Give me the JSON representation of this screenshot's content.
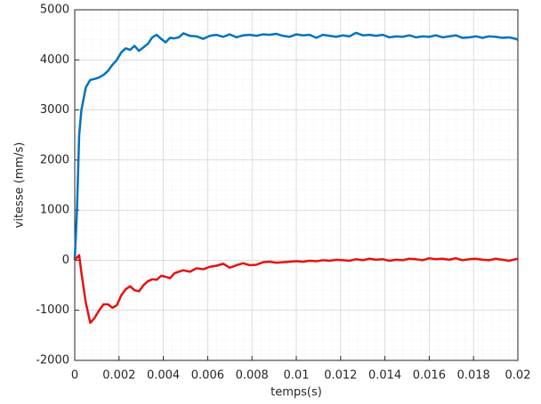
{
  "chart_data": {
    "type": "line",
    "x_label": "temps(s)",
    "y_label": "vitesse (mm/s)",
    "x": [
      0,
      0.0001,
      0.0002,
      0.0003,
      0.0005,
      0.0007,
      0.0009,
      0.0011,
      0.0013,
      0.0015,
      0.0017,
      0.0019,
      0.0021,
      0.0023,
      0.0025,
      0.0027,
      0.0029,
      0.0031,
      0.0033,
      0.0035,
      0.0037,
      0.0039,
      0.0041,
      0.0043,
      0.0045,
      0.0047,
      0.0049,
      0.0052,
      0.0055,
      0.0058,
      0.0061,
      0.0064,
      0.0067,
      0.007,
      0.0073,
      0.0076,
      0.0079,
      0.0082,
      0.0085,
      0.0088,
      0.0091,
      0.0094,
      0.0097,
      0.01,
      0.0103,
      0.0106,
      0.0109,
      0.0112,
      0.0115,
      0.0118,
      0.0121,
      0.0124,
      0.0127,
      0.013,
      0.0133,
      0.0136,
      0.0139,
      0.0142,
      0.0145,
      0.0148,
      0.0151,
      0.0154,
      0.0157,
      0.016,
      0.0163,
      0.0166,
      0.0169,
      0.0172,
      0.0175,
      0.0178,
      0.0181,
      0.0184,
      0.0187,
      0.019,
      0.0193,
      0.0196,
      0.0199,
      0.02
    ],
    "series": [
      {
        "color": "#0072bd",
        "values": [
          0,
          1000,
          2500,
          3000,
          3450,
          3600,
          3620,
          3650,
          3700,
          3780,
          3900,
          4000,
          4150,
          4230,
          4200,
          4280,
          4180,
          4250,
          4320,
          4450,
          4500,
          4420,
          4350,
          4440,
          4430,
          4450,
          4530,
          4480,
          4470,
          4420,
          4480,
          4500,
          4460,
          4510,
          4450,
          4490,
          4500,
          4480,
          4510,
          4500,
          4520,
          4480,
          4460,
          4510,
          4490,
          4500,
          4440,
          4500,
          4480,
          4460,
          4490,
          4470,
          4540,
          4490,
          4500,
          4480,
          4500,
          4450,
          4470,
          4460,
          4490,
          4450,
          4470,
          4460,
          4490,
          4450,
          4470,
          4490,
          4440,
          4450,
          4470,
          4440,
          4470,
          4460,
          4440,
          4450,
          4420,
          4400
        ]
      },
      {
        "color": "#e81010",
        "values": [
          0,
          50,
          100,
          -250,
          -850,
          -1250,
          -1150,
          -1000,
          -880,
          -880,
          -950,
          -900,
          -700,
          -580,
          -520,
          -600,
          -620,
          -500,
          -420,
          -380,
          -390,
          -310,
          -330,
          -360,
          -260,
          -230,
          -200,
          -230,
          -160,
          -180,
          -130,
          -110,
          -70,
          -150,
          -100,
          -60,
          -100,
          -90,
          -40,
          -30,
          -50,
          -40,
          -30,
          -20,
          -30,
          -10,
          -20,
          0,
          -10,
          10,
          0,
          -10,
          20,
          0,
          30,
          10,
          20,
          -10,
          10,
          0,
          30,
          20,
          0,
          40,
          20,
          30,
          10,
          40,
          0,
          20,
          30,
          10,
          0,
          30,
          10,
          -10,
          20,
          30
        ]
      }
    ],
    "xlim": [
      0,
      0.02
    ],
    "xticks": [
      0,
      0.002,
      0.004,
      0.006,
      0.008,
      0.01,
      0.012,
      0.014,
      0.016,
      0.018,
      0.02
    ],
    "ylim": [
      -2000,
      5000
    ],
    "yticks": [
      -2000,
      -1000,
      0,
      1000,
      2000,
      3000,
      4000,
      5000
    ],
    "grid": true,
    "minor_grid": true
  }
}
